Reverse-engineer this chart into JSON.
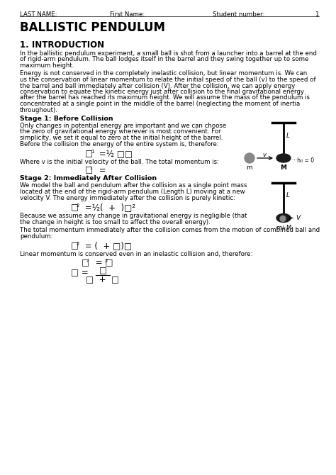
{
  "bg_color": "#ffffff",
  "header_lastname": "LAST NAME:",
  "header_firstname": "First Name:",
  "header_student": "Student number:",
  "header_page": "1",
  "title": "BALLISTIC PENDULUM",
  "section1_heading": "1. INTRODUCTION",
  "para1_lines": [
    "In the ballistic pendulum experiment, a small ball is shot from a launcher into a barrel at the end",
    "of rigid-arm pendulum. The ball lodges itself in the barrel and they swing together up to some",
    "maximum height."
  ],
  "para2_lines": [
    "Energy is not conserved in the completely inelastic collision, but linear momentum is. We can",
    "us the conservation of linear momentum to relate the initial speed of the ball (v) to the speed of",
    "the barrel and ball immediately after collision (V). After the collision, we can apply energy",
    "conservation to equate the kinetic energy just after collision to the final gravitational energy",
    "after the barrel has reached its maximum height. We will assume the mass of the pendulum is",
    "concentrated at a single point in the middle of the barrel (neglecting the moment of inertia",
    "throughout)."
  ],
  "stage1_title": "Stage 1: Before Collision",
  "stage1_lines": [
    "Only changes in potential energy are important and we can choose",
    "the zero of gravitational energy wherever is most convenient. For",
    "simplicity, we set it equal to zero at the initial height of the barrel.",
    "Before the collision the energy of the entire system is, therefore:"
  ],
  "where1": "Where v is the initial velocity of the ball. The total momentum is:",
  "stage2_title": "Stage 2: Immediately After Collision",
  "stage2_lines": [
    "We model the ball and pendulum after the collision as a single point mass",
    "located at the end of the rigid-arm pendulum (Length L) moving at a new",
    "velocity V. The energy immediately after the collision is purely kinetic:"
  ],
  "stage2b_lines": [
    "Because we assume any change in gravitational energy is negligible (that",
    "the change in height is too small to affect the overall energy)."
  ],
  "stage2c_lines": [
    "The total momentum immediately after the collision comes from the motion of combined ball and",
    "pendulum:"
  ],
  "linear_mom_text": "Linear momentum is conserved even in an inelastic collision and, therefore:",
  "lh": 8.5,
  "fs_body": 6.2,
  "lm": 28,
  "rm": 450
}
